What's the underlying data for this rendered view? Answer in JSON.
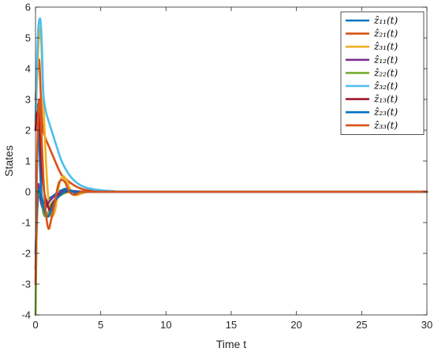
{
  "chart_data": {
    "type": "line",
    "title": "",
    "xlabel": "Time t",
    "ylabel": "States",
    "xlim": [
      0,
      30
    ],
    "ylim": [
      -4,
      6
    ],
    "xticks": [
      0,
      5,
      10,
      15,
      20,
      25,
      30
    ],
    "yticks": [
      -4,
      -3,
      -2,
      -1,
      0,
      1,
      2,
      3,
      4,
      5,
      6
    ],
    "grid": false,
    "legend_placement": "top-right",
    "series": [
      {
        "name": "ẑ₁₁(t)",
        "color": "#0072BD",
        "x": [
          0,
          0.1,
          0.2,
          0.3,
          0.4,
          0.5,
          0.7,
          0.9,
          1.1,
          1.3,
          1.6,
          2.0,
          2.4,
          2.8,
          3.2,
          4.0,
          5.0,
          6.0,
          8.0,
          30
        ],
        "y": [
          2.0,
          2.8,
          2.6,
          1.4,
          0.3,
          -0.2,
          -0.4,
          -0.3,
          -0.2,
          -0.15,
          -0.05,
          0.05,
          0.1,
          0.0,
          -0.05,
          0.0,
          0.0,
          0.0,
          0.0,
          0.0
        ]
      },
      {
        "name": "ẑ₂₁(t)",
        "color": "#D95319",
        "x": [
          0,
          0.1,
          0.2,
          0.3,
          0.4,
          0.5,
          0.6,
          0.8,
          1.0,
          1.3,
          1.6,
          2.0,
          2.5,
          3.0,
          3.5,
          4.0,
          5.0,
          6.0,
          8.0,
          30
        ],
        "y": [
          3.0,
          3.6,
          4.2,
          4.2,
          3.2,
          2.3,
          1.95,
          1.7,
          1.5,
          1.2,
          0.9,
          0.55,
          0.35,
          0.2,
          0.1,
          0.05,
          0.02,
          0.0,
          0.0,
          0.0
        ]
      },
      {
        "name": "ẑ₃₁(t)",
        "color": "#EDB120",
        "x": [
          0,
          0.1,
          0.2,
          0.3,
          0.35,
          0.45,
          0.6,
          0.8,
          1.0,
          1.2,
          1.5,
          1.8,
          2.1,
          2.4,
          2.8,
          3.2,
          4.0,
          5.0,
          6.0,
          8.0,
          30
        ],
        "y": [
          2.2,
          3.5,
          4.6,
          5.2,
          5.3,
          4.8,
          3.0,
          1.0,
          -0.3,
          -0.8,
          -0.6,
          0.2,
          0.5,
          0.35,
          -0.05,
          -0.1,
          0.0,
          0.0,
          0.0,
          0.0,
          0.0
        ]
      },
      {
        "name": "ẑ₁₂(t)",
        "color": "#7E2F8E",
        "x": [
          0,
          0.1,
          0.2,
          0.3,
          0.4,
          0.6,
          0.8,
          1.0,
          1.3,
          1.6,
          2.0,
          2.5,
          3.0,
          4.0,
          5.0,
          6.0,
          30
        ],
        "y": [
          -2.5,
          -1.0,
          0.2,
          0.0,
          -0.3,
          -0.6,
          -0.5,
          -0.35,
          -0.2,
          -0.1,
          0.0,
          0.05,
          0.02,
          0.0,
          0.0,
          0.0,
          0.0
        ]
      },
      {
        "name": "ẑ₂₂(t)",
        "color": "#77AC30",
        "x": [
          0,
          0.05,
          0.1,
          0.2,
          0.3,
          0.4,
          0.5,
          0.6,
          0.8,
          1.0,
          1.2,
          1.5,
          1.8,
          2.2,
          2.6,
          3.0,
          3.5,
          4.0,
          5.0,
          6.0,
          30
        ],
        "y": [
          -4.0,
          -2.5,
          -1.0,
          -0.2,
          0.05,
          -0.05,
          -0.3,
          -0.7,
          -0.8,
          -0.65,
          -0.4,
          -0.25,
          -0.15,
          -0.05,
          0.0,
          0.0,
          0.0,
          0.0,
          0.0,
          0.0,
          0.0
        ]
      },
      {
        "name": "ẑ₃₂(t)",
        "color": "#4DBEEE",
        "x": [
          0,
          0.1,
          0.2,
          0.3,
          0.4,
          0.5,
          0.6,
          0.8,
          1.0,
          1.3,
          1.6,
          2.0,
          2.5,
          3.0,
          3.5,
          4.0,
          5.0,
          6.0,
          7.0,
          30
        ],
        "y": [
          2.3,
          4.0,
          5.2,
          5.6,
          5.5,
          4.6,
          3.2,
          2.6,
          2.3,
          1.9,
          1.5,
          1.0,
          0.6,
          0.35,
          0.2,
          0.12,
          0.05,
          0.02,
          0.0,
          0.0
        ]
      },
      {
        "name": "ẑ₁₃(t)",
        "color": "#A2142F",
        "x": [
          0,
          0.1,
          0.2,
          0.3,
          0.4,
          0.5,
          0.7,
          0.9,
          1.1,
          1.3,
          1.6,
          2.0,
          2.5,
          3.0,
          4.0,
          5.0,
          6.0,
          30
        ],
        "y": [
          2.0,
          2.5,
          2.6,
          2.3,
          1.5,
          0.6,
          -0.1,
          -0.4,
          -0.6,
          -0.4,
          -0.2,
          -0.05,
          0.02,
          0.0,
          0.0,
          0.0,
          0.0,
          0.0
        ]
      },
      {
        "name": "ẑ₂₃(t)",
        "color": "#0072BD",
        "x": [
          0,
          0.1,
          0.2,
          0.3,
          0.4,
          0.6,
          0.8,
          1.0,
          1.2,
          1.5,
          1.8,
          2.2,
          2.6,
          3.0,
          4.0,
          5.0,
          6.0,
          30
        ],
        "y": [
          -2.0,
          -0.8,
          0.0,
          0.05,
          -0.1,
          -0.5,
          -0.75,
          -0.8,
          -0.6,
          -0.3,
          -0.15,
          0.0,
          0.05,
          0.0,
          0.0,
          0.0,
          0.0,
          0.0
        ]
      },
      {
        "name": "ẑ₃₃(t)",
        "color": "#D95319",
        "x": [
          0,
          0.05,
          0.1,
          0.2,
          0.3,
          0.4,
          0.6,
          0.8,
          1.0,
          1.2,
          1.5,
          1.8,
          2.2,
          2.6,
          3.0,
          3.5,
          4.0,
          5.0,
          6.0,
          30
        ],
        "y": [
          -3.0,
          -1.5,
          0.5,
          2.5,
          3.0,
          2.4,
          0.5,
          -0.7,
          -1.2,
          -0.9,
          -0.3,
          0.3,
          0.35,
          0.0,
          -0.1,
          0.0,
          0.0,
          0.0,
          0.0,
          0.0
        ]
      }
    ]
  }
}
